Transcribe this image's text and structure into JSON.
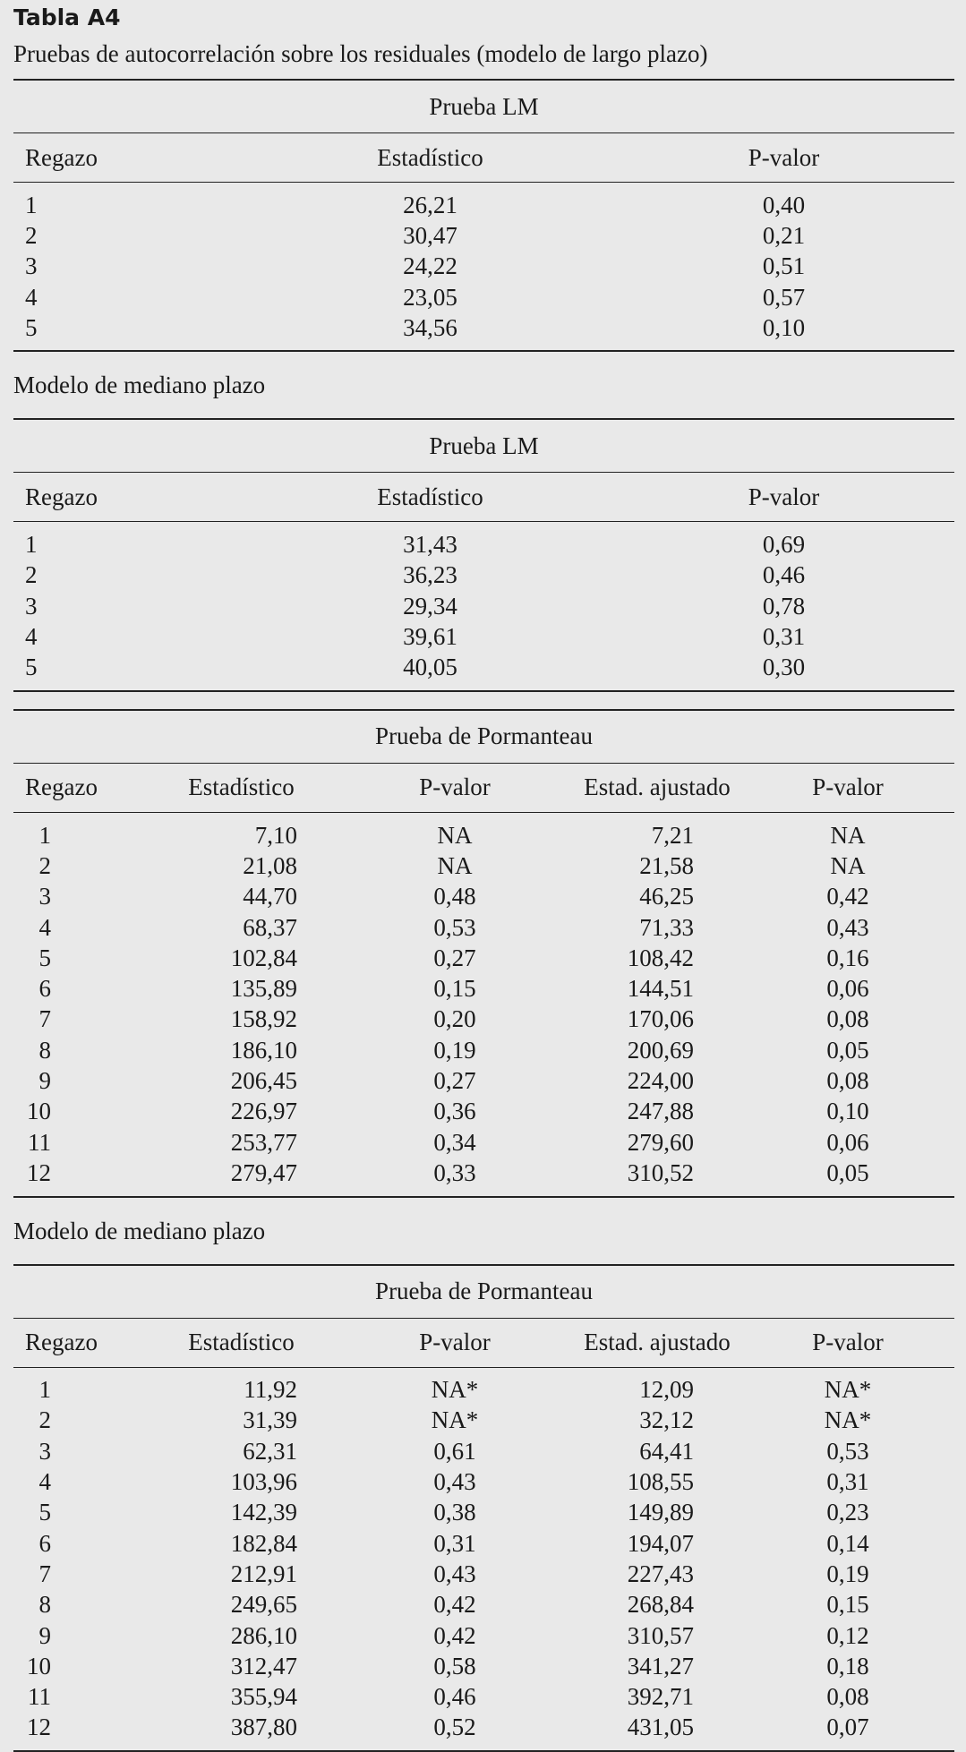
{
  "title": "Tabla A4",
  "subtitle": "Pruebas de autocorrelación sobre los residuales (modelo de largo plazo)",
  "tables": [
    {
      "test": "Prueba LM",
      "headers": [
        "Regazo",
        "Estadístico",
        "P-valor"
      ],
      "rows": [
        [
          "1",
          "26,21",
          "0,40"
        ],
        [
          "2",
          "30,47",
          "0,21"
        ],
        [
          "3",
          "24,22",
          "0,51"
        ],
        [
          "4",
          "23,05",
          "0,57"
        ],
        [
          "5",
          "34,56",
          "0,10"
        ]
      ]
    },
    {
      "caption": "Modelo de mediano plazo",
      "test": "Prueba LM",
      "headers": [
        "Regazo",
        "Estadístico",
        "P-valor"
      ],
      "rows": [
        [
          "1",
          "31,43",
          "0,69"
        ],
        [
          "2",
          "36,23",
          "0,46"
        ],
        [
          "3",
          "29,34",
          "0,78"
        ],
        [
          "4",
          "39,61",
          "0,31"
        ],
        [
          "5",
          "40,05",
          "0,30"
        ]
      ]
    },
    {
      "test": "Prueba de Pormanteau",
      "headers": [
        "Regazo",
        "Estadístico",
        "P-valor",
        "Estad. ajustado",
        "P-valor"
      ],
      "rows": [
        [
          "1",
          "7,10",
          "NA",
          "7,21",
          "NA"
        ],
        [
          "2",
          "21,08",
          "NA",
          "21,58",
          "NA"
        ],
        [
          "3",
          "44,70",
          "0,48",
          "46,25",
          "0,42"
        ],
        [
          "4",
          "68,37",
          "0,53",
          "71,33",
          "0,43"
        ],
        [
          "5",
          "102,84",
          "0,27",
          "108,42",
          "0,16"
        ],
        [
          "6",
          "135,89",
          "0,15",
          "144,51",
          "0,06"
        ],
        [
          "7",
          "158,92",
          "0,20",
          "170,06",
          "0,08"
        ],
        [
          "8",
          "186,10",
          "0,19",
          "200,69",
          "0,05"
        ],
        [
          "9",
          "206,45",
          "0,27",
          "224,00",
          "0,08"
        ],
        [
          "10",
          "226,97",
          "0,36",
          "247,88",
          "0,10"
        ],
        [
          "11",
          "253,77",
          "0,34",
          "279,60",
          "0,06"
        ],
        [
          "12",
          "279,47",
          "0,33",
          "310,52",
          "0,05"
        ]
      ]
    },
    {
      "caption": "Modelo de mediano plazo",
      "test": "Prueba de Pormanteau",
      "headers": [
        "Regazo",
        "Estadístico",
        "P-valor",
        "Estad. ajustado",
        "P-valor"
      ],
      "rows": [
        [
          "1",
          "11,92",
          "NA*",
          "12,09",
          "NA*"
        ],
        [
          "2",
          "31,39",
          "NA*",
          "32,12",
          "NA*"
        ],
        [
          "3",
          "62,31",
          "0,61",
          "64,41",
          "0,53"
        ],
        [
          "4",
          "103,96",
          "0,43",
          "108,55",
          "0,31"
        ],
        [
          "5",
          "142,39",
          "0,38",
          "149,89",
          "0,23"
        ],
        [
          "6",
          "182,84",
          "0,31",
          "194,07",
          "0,14"
        ],
        [
          "7",
          "212,91",
          "0,43",
          "227,43",
          "0,19"
        ],
        [
          "8",
          "249,65",
          "0,42",
          "268,84",
          "0,15"
        ],
        [
          "9",
          "286,10",
          "0,42",
          "310,57",
          "0,12"
        ],
        [
          "10",
          "312,47",
          "0,58",
          "341,27",
          "0,18"
        ],
        [
          "11",
          "355,94",
          "0,46",
          "392,71",
          "0,08"
        ],
        [
          "12",
          "387,80",
          "0,52",
          "431,05",
          "0,07"
        ]
      ]
    }
  ]
}
